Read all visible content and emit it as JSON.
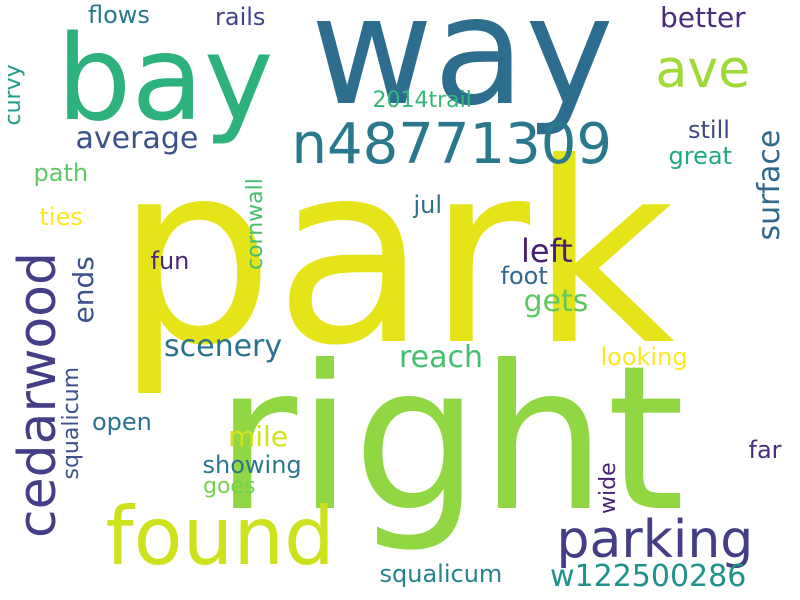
{
  "words": [
    {
      "key": "park",
      "text": "park",
      "color": "#e4e419"
    },
    {
      "key": "right",
      "text": "right",
      "color": "#90d743"
    },
    {
      "key": "way",
      "text": "way",
      "color": "#2d6e8e"
    },
    {
      "key": "bay",
      "text": "bay",
      "color": "#2db27d"
    },
    {
      "key": "found",
      "text": "found",
      "color": "#cde11d"
    },
    {
      "key": "n48771309",
      "text": "n48771309",
      "color": "#2a788e"
    },
    {
      "key": "cedarwood",
      "text": "cedarwood",
      "color": "#433e85"
    },
    {
      "key": "parking",
      "text": "parking",
      "color": "#433e85"
    },
    {
      "key": "ave",
      "text": "ave",
      "color": "#a0da39"
    },
    {
      "key": "average",
      "text": "average",
      "color": "#3b528b"
    },
    {
      "key": "scenery",
      "text": "scenery",
      "color": "#2c728e"
    },
    {
      "key": "better",
      "text": "better",
      "color": "#472d7b"
    },
    {
      "key": "surface",
      "text": "surface",
      "color": "#31688e"
    },
    {
      "key": "w122500286",
      "text": "w122500286",
      "color": "#21918c"
    },
    {
      "key": "left",
      "text": "left",
      "color": "#482173"
    },
    {
      "key": "gets",
      "text": "gets",
      "color": "#5ec962"
    },
    {
      "key": "reach",
      "text": "reach",
      "color": "#44bf70"
    },
    {
      "key": "ends",
      "text": "ends",
      "color": "#3b528b"
    },
    {
      "key": "mile",
      "text": "mile",
      "color": "#d2e21b"
    },
    {
      "key": "2014trail",
      "text": "2014trail",
      "color": "#35b779"
    },
    {
      "key": "looking",
      "text": "looking",
      "color": "#fde725"
    },
    {
      "key": "great",
      "text": "great",
      "color": "#22a884"
    },
    {
      "key": "still",
      "text": "still",
      "color": "#3e4989"
    },
    {
      "key": "showing",
      "text": "showing",
      "color": "#2a788e"
    },
    {
      "key": "squalicum_bottom",
      "text": "squalicum",
      "color": "#26828e"
    },
    {
      "key": "squalicum_vertical",
      "text": "squalicum",
      "color": "#3b528b"
    },
    {
      "key": "cornwall",
      "text": "cornwall",
      "color": "#44bf70"
    },
    {
      "key": "flows",
      "text": "flows",
      "color": "#2a788e"
    },
    {
      "key": "rails",
      "text": "rails",
      "color": "#414487"
    },
    {
      "key": "curvy",
      "text": "curvy",
      "color": "#1f9e89"
    },
    {
      "key": "path",
      "text": "path",
      "color": "#5ec962"
    },
    {
      "key": "ties",
      "text": "ties",
      "color": "#fde725"
    },
    {
      "key": "jul",
      "text": "jul",
      "color": "#2c728e"
    },
    {
      "key": "fun",
      "text": "fun",
      "color": "#482878"
    },
    {
      "key": "foot",
      "text": "foot",
      "color": "#31688e"
    },
    {
      "key": "open",
      "text": "open",
      "color": "#2c728e"
    },
    {
      "key": "goes",
      "text": "goes",
      "color": "#75d054"
    },
    {
      "key": "far",
      "text": "far",
      "color": "#472d7b"
    },
    {
      "key": "wide",
      "text": "wide",
      "color": "#482475"
    }
  ]
}
